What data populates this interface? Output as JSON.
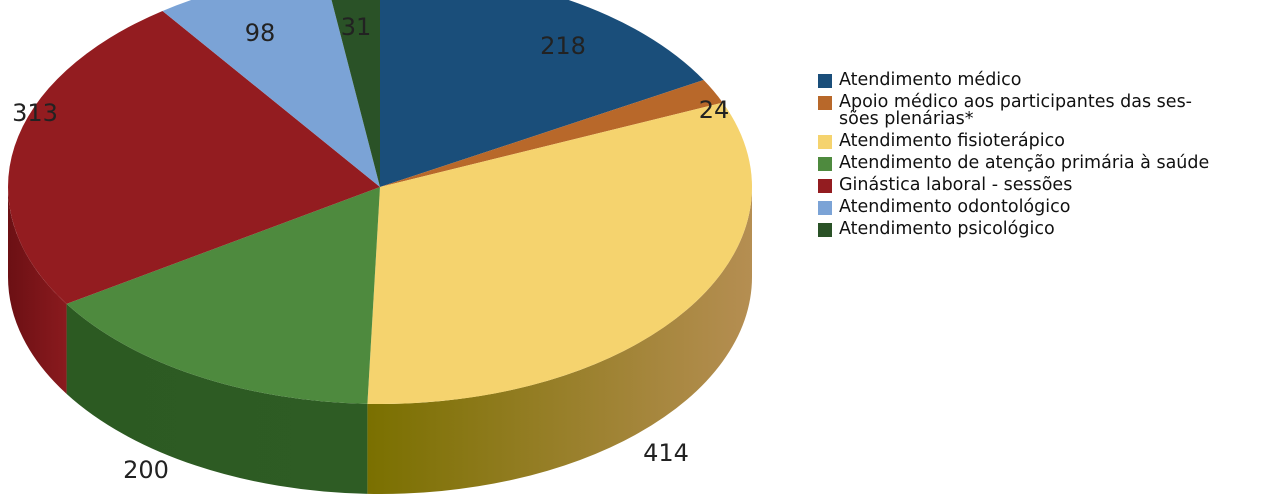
{
  "chart_data": {
    "type": "pie",
    "title": "",
    "slices": [
      {
        "label": "Atendimento médico",
        "value": 218,
        "color": "#1a4e7a",
        "side_dark": "#0e2c46",
        "side_light": "#1a4e7a"
      },
      {
        "label": "Apoio médico aos participantes das sessões plenárias*",
        "label_display": "Apoio médico aos participantes das ses-sões plenárias*",
        "value": 24,
        "color": "#b8682a",
        "side_dark": "#6e3a14",
        "side_light": "#b8682a"
      },
      {
        "label": "Atendimento fisioterápico",
        "value": 414,
        "color": "#f5d36e",
        "side_dark": "#7a7000",
        "side_light": "#b58e52"
      },
      {
        "label": "Atendimento de atenção primária à saúde",
        "value": 200,
        "color": "#4e8a3e",
        "side_dark": "#2c5a22",
        "side_light": "#2e5c24"
      },
      {
        "label": "Ginástica laboral - sessões",
        "value": 313,
        "color": "#931c20",
        "side_dark": "#6c1014",
        "side_light": "#8a1a1e"
      },
      {
        "label": "Atendimento odontológico",
        "value": 98,
        "color": "#7ba3d6",
        "side_dark": "#5a7fb0",
        "side_light": "#7ba3d6"
      },
      {
        "label": "Atendimento psicológico",
        "value": 31,
        "color": "#2a5227",
        "side_dark": "#1a3318",
        "side_light": "#2a5227"
      }
    ],
    "legend_position": "right",
    "style": "3d-pie"
  }
}
